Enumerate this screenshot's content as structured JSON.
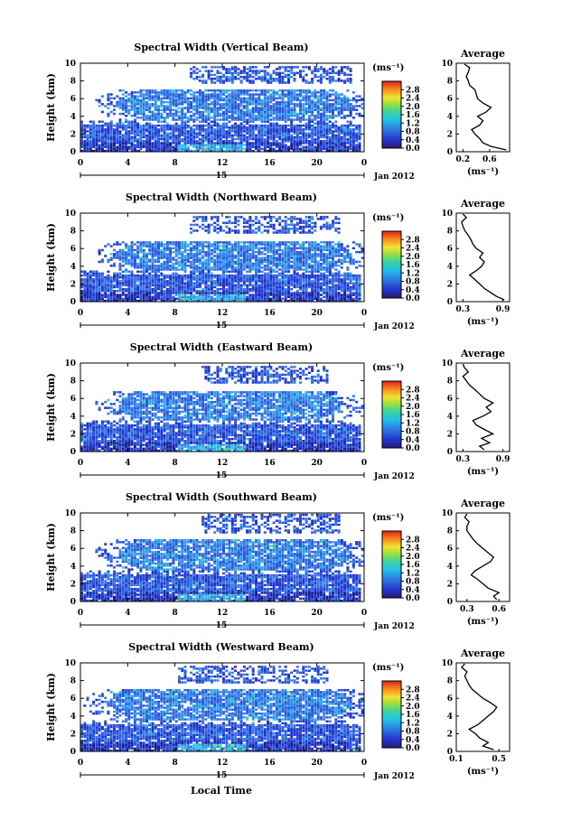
{
  "figure": {
    "xlabel": "Local Time",
    "month_label": "Jan 2012",
    "day_label": "15",
    "colorbar_unit": "(ms⁻¹)",
    "profile_title": "Average",
    "profile_xlabel": "(ms⁻¹)",
    "ylabel": "Height (km)"
  },
  "chart_data": [
    {
      "type": "heatmap",
      "title": "Spectral Width (Vertical Beam)",
      "xlabel": "Local Time",
      "ylabel": "Height (km)",
      "xlim": [
        0,
        24
      ],
      "ylim": [
        0,
        10
      ],
      "xticks": [
        "0",
        "4",
        "8",
        "12",
        "16",
        "20",
        "0"
      ],
      "yticks": [
        "0",
        "2",
        "4",
        "6",
        "8",
        "10"
      ],
      "colorbar": {
        "unit": "(ms⁻¹)",
        "ticks": [
          "0.0",
          "0.4",
          "0.8",
          "1.2",
          "1.6",
          "2.0",
          "2.4",
          "2.8"
        ],
        "range": [
          0,
          3.2
        ]
      },
      "coverage": {
        "low_layer_km": [
          0,
          3
        ],
        "mid_layer_km": [
          3.5,
          7
        ],
        "mid_layer_hours": [
          3,
          23
        ],
        "upper_layer_km": [
          7.5,
          9.5
        ],
        "upper_layer_hours": [
          9,
          23
        ]
      },
      "profile": {
        "title": "Average",
        "xlabel": "(ms⁻¹)",
        "xlim": [
          0.1,
          0.9
        ],
        "xticks": [
          "0.2",
          "0.6"
        ],
        "height_km": [
          0.2,
          0.6,
          1.0,
          1.5,
          2.0,
          2.5,
          3.0,
          3.5,
          4.0,
          4.5,
          5.0,
          5.5,
          6.0,
          6.5,
          7.0,
          7.5,
          8.0,
          8.5,
          9.0,
          9.5,
          9.9
        ],
        "values": [
          0.85,
          0.62,
          0.5,
          0.45,
          0.38,
          0.33,
          0.45,
          0.5,
          0.42,
          0.55,
          0.62,
          0.5,
          0.42,
          0.4,
          0.38,
          0.3,
          0.28,
          0.25,
          0.28,
          0.3,
          0.22
        ]
      }
    },
    {
      "type": "heatmap",
      "title": "Spectral Width (Northward Beam)",
      "xlabel": "Local Time",
      "ylabel": "Height (km)",
      "xlim": [
        0,
        24
      ],
      "ylim": [
        0,
        10
      ],
      "xticks": [
        "0",
        "4",
        "8",
        "12",
        "16",
        "20",
        "0"
      ],
      "yticks": [
        "0",
        "2",
        "4",
        "6",
        "8",
        "10"
      ],
      "colorbar": {
        "unit": "(ms⁻¹)",
        "ticks": [
          "0.0",
          "0.4",
          "0.8",
          "1.2",
          "1.6",
          "2.0",
          "2.4",
          "2.8"
        ],
        "range": [
          0,
          3.2
        ]
      },
      "coverage": {
        "low_layer_km": [
          0,
          3
        ],
        "mid_layer_km": [
          3.5,
          6.8
        ],
        "mid_layer_hours": [
          3,
          23
        ],
        "upper_layer_km": [
          7.5,
          9.5
        ],
        "upper_layer_hours": [
          9,
          22
        ]
      },
      "profile": {
        "title": "Average",
        "xlabel": "(ms⁻¹)",
        "xlim": [
          0.2,
          1.0
        ],
        "xticks": [
          "0.3",
          "0.9"
        ],
        "height_km": [
          0.2,
          0.6,
          1.0,
          1.5,
          2.0,
          2.5,
          3.0,
          3.5,
          4.0,
          4.5,
          5.0,
          5.5,
          6.0,
          6.5,
          7.0,
          7.5,
          8.0,
          8.5,
          9.0,
          9.5,
          9.9
        ],
        "values": [
          0.92,
          0.8,
          0.72,
          0.62,
          0.55,
          0.48,
          0.4,
          0.5,
          0.58,
          0.62,
          0.55,
          0.6,
          0.5,
          0.45,
          0.42,
          0.38,
          0.33,
          0.3,
          0.28,
          0.35,
          0.3
        ]
      }
    },
    {
      "type": "heatmap",
      "title": "Spectral Width (Eastward Beam)",
      "xlabel": "Local Time",
      "ylabel": "Height (km)",
      "xlim": [
        0,
        24
      ],
      "ylim": [
        0,
        10
      ],
      "xticks": [
        "0",
        "4",
        "8",
        "12",
        "16",
        "20",
        "0"
      ],
      "yticks": [
        "0",
        "2",
        "4",
        "6",
        "8",
        "10"
      ],
      "colorbar": {
        "unit": "(ms⁻¹)",
        "ticks": [
          "0.0",
          "0.4",
          "0.8",
          "1.2",
          "1.6",
          "2.0",
          "2.4",
          "2.8"
        ],
        "range": [
          0,
          3.2
        ]
      },
      "coverage": {
        "low_layer_km": [
          0,
          3
        ],
        "mid_layer_km": [
          3.5,
          6.8
        ],
        "mid_layer_hours": [
          3,
          22
        ],
        "upper_layer_km": [
          7.5,
          9.5
        ],
        "upper_layer_hours": [
          10,
          21
        ]
      },
      "profile": {
        "title": "Average",
        "xlabel": "(ms⁻¹)",
        "xlim": [
          0.2,
          1.0
        ],
        "xticks": [
          "0.3",
          "0.9"
        ],
        "height_km": [
          0.2,
          0.6,
          1.0,
          1.5,
          2.0,
          2.5,
          3.0,
          3.5,
          4.0,
          4.5,
          5.0,
          5.5,
          6.0,
          6.5,
          7.0,
          7.5,
          8.0,
          8.5,
          9.0,
          9.5,
          9.9
        ],
        "values": [
          0.62,
          0.55,
          0.7,
          0.58,
          0.75,
          0.62,
          0.5,
          0.45,
          0.6,
          0.72,
          0.65,
          0.75,
          0.62,
          0.55,
          0.48,
          0.4,
          0.35,
          0.3,
          0.38,
          0.32,
          0.3
        ]
      }
    },
    {
      "type": "heatmap",
      "title": "Spectral Width (Southward Beam)",
      "xlabel": "Local Time",
      "ylabel": "Height (km)",
      "xlim": [
        0,
        24
      ],
      "ylim": [
        0,
        10
      ],
      "xticks": [
        "0",
        "4",
        "8",
        "12",
        "16",
        "20",
        "0"
      ],
      "yticks": [
        "0",
        "2",
        "4",
        "6",
        "8",
        "10"
      ],
      "colorbar": {
        "unit": "(ms⁻¹)",
        "ticks": [
          "0.0",
          "0.4",
          "0.8",
          "1.2",
          "1.6",
          "2.0",
          "2.4",
          "2.8"
        ],
        "range": [
          0,
          3.2
        ]
      },
      "coverage": {
        "low_layer_km": [
          0,
          3
        ],
        "mid_layer_km": [
          3.5,
          7
        ],
        "mid_layer_hours": [
          3,
          23
        ],
        "upper_layer_km": [
          7.5,
          9.8
        ],
        "upper_layer_hours": [
          10,
          22
        ]
      },
      "profile": {
        "title": "Average",
        "xlabel": "(ms⁻¹)",
        "xlim": [
          0.2,
          0.7
        ],
        "xticks": [
          "0.3",
          "0.6"
        ],
        "height_km": [
          0.2,
          0.6,
          1.0,
          1.5,
          2.0,
          2.5,
          3.0,
          3.5,
          4.0,
          4.5,
          5.0,
          5.5,
          6.0,
          6.5,
          7.0,
          7.5,
          8.0,
          8.5,
          9.0,
          9.5,
          9.9
        ],
        "values": [
          0.58,
          0.55,
          0.6,
          0.5,
          0.45,
          0.4,
          0.34,
          0.38,
          0.45,
          0.52,
          0.55,
          0.5,
          0.45,
          0.4,
          0.36,
          0.33,
          0.3,
          0.3,
          0.32,
          0.28,
          0.3
        ]
      }
    },
    {
      "type": "heatmap",
      "title": "Spectral Width (Westward Beam)",
      "xlabel": "Local Time",
      "ylabel": "Height (km)",
      "xlim": [
        0,
        24
      ],
      "ylim": [
        0,
        10
      ],
      "xticks": [
        "0",
        "4",
        "8",
        "12",
        "16",
        "20",
        "0"
      ],
      "yticks": [
        "0",
        "2",
        "4",
        "6",
        "8",
        "10"
      ],
      "colorbar": {
        "unit": "(ms⁻¹)",
        "ticks": [
          "0.0",
          "0.4",
          "0.8",
          "1.2",
          "1.6",
          "2.0",
          "2.4",
          "2.8"
        ],
        "range": [
          0,
          3.2
        ]
      },
      "coverage": {
        "low_layer_km": [
          0,
          3
        ],
        "mid_layer_km": [
          3.5,
          7
        ],
        "mid_layer_hours": [
          2,
          23
        ],
        "upper_layer_km": [
          7.5,
          9.5
        ],
        "upper_layer_hours": [
          8,
          21
        ]
      },
      "profile": {
        "title": "Average",
        "xlabel": "(ms⁻¹)",
        "xlim": [
          0.1,
          0.6
        ],
        "xticks": [
          "0.1",
          "0.5"
        ],
        "height_km": [
          0.2,
          0.6,
          1.0,
          1.5,
          2.0,
          2.5,
          3.0,
          3.5,
          4.0,
          4.5,
          5.0,
          5.5,
          6.0,
          6.5,
          7.0,
          7.5,
          8.0,
          8.5,
          9.0,
          9.5,
          9.9
        ],
        "values": [
          0.45,
          0.35,
          0.4,
          0.32,
          0.28,
          0.22,
          0.3,
          0.35,
          0.4,
          0.45,
          0.48,
          0.42,
          0.35,
          0.3,
          0.25,
          0.22,
          0.2,
          0.18,
          0.2,
          0.15,
          0.18
        ]
      }
    }
  ]
}
